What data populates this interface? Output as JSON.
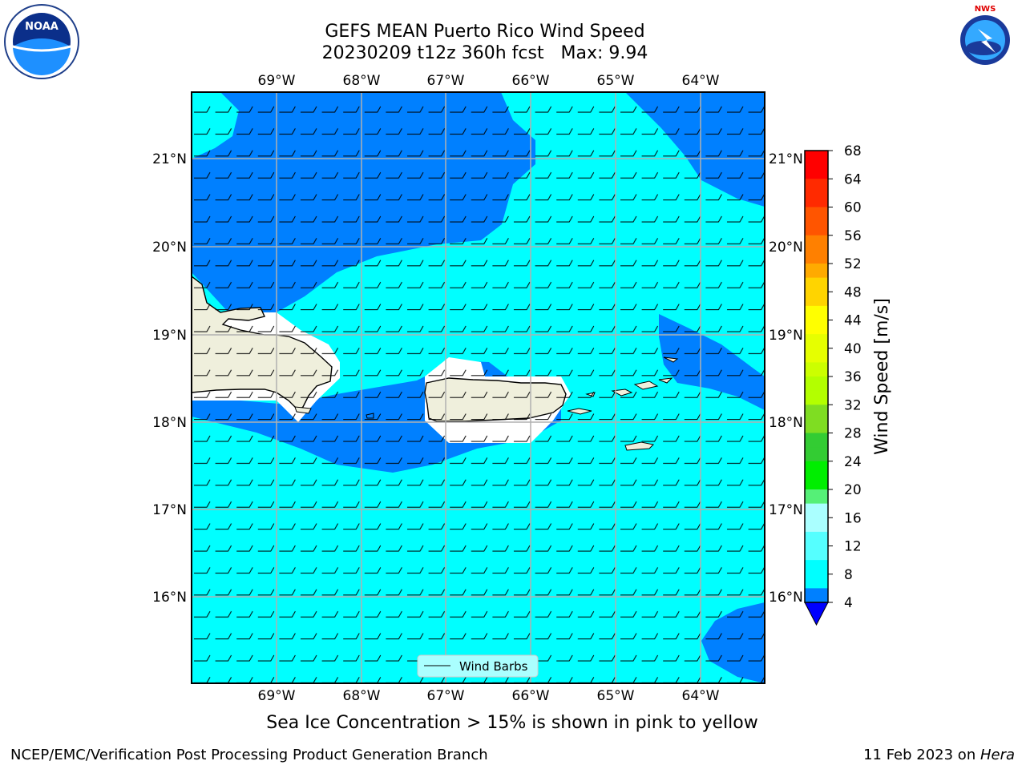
{
  "header": {
    "title_line1": "GEFS MEAN Puerto Rico Wind Speed",
    "title_line2": "20230209 t12z 360h fcst   Max: 9.94"
  },
  "logos": {
    "noaa_text": "NOAA",
    "nws_text": "NATIONAL WEATHER SERVICE"
  },
  "map": {
    "lon_labels": [
      "69°W",
      "68°W",
      "67°W",
      "66°W",
      "65°W",
      "64°W"
    ],
    "lat_labels": [
      "21°N",
      "20°N",
      "19°N",
      "18°N",
      "17°N",
      "16°N"
    ],
    "legend_label": "Wind Barbs",
    "colors": {
      "sea_light": "#00ffff",
      "sea_dark": "#0080ff",
      "land": "#efefdc",
      "grid": "#b0b0b0"
    }
  },
  "colorbar": {
    "label": "Wind Speed [m/s]",
    "ticks": [
      "68",
      "64",
      "60",
      "56",
      "52",
      "48",
      "44",
      "40",
      "36",
      "32",
      "28",
      "24",
      "20",
      "16",
      "12",
      "8",
      "4"
    ],
    "colors": [
      "#ff0000",
      "#ff2a00",
      "#ff5500",
      "#ff8000",
      "#ffaa00",
      "#ffd400",
      "#ffff00",
      "#e6ff00",
      "#ccff00",
      "#b3ff00",
      "#7fdd22",
      "#33cc33",
      "#00ee00",
      "#55f077",
      "#aaffff",
      "#55ffff",
      "#00ffff",
      "#0080ff"
    ],
    "under_color": "#0000ff"
  },
  "caption": "Sea Ice Concentration > 15% is shown in pink to yellow",
  "footer": {
    "left": "NCEP/EMC/Verification Post Processing Product Generation Branch",
    "right_date": "11 Feb 2023 on ",
    "right_host": "Hera"
  }
}
